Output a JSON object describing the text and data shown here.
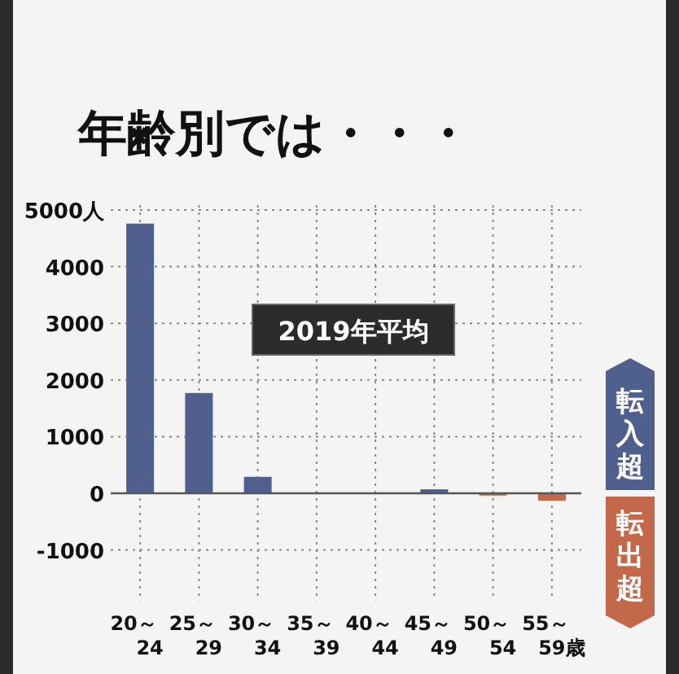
{
  "chart_data": {
    "type": "bar",
    "title": "年齢別では・・・",
    "categories": [
      "20～24",
      "25～29",
      "30～34",
      "35～39",
      "40～44",
      "45～49",
      "50～54",
      "55～59歳"
    ],
    "values": [
      4760,
      1770,
      290,
      0,
      0,
      70,
      -40,
      -130
    ],
    "colors": [
      "#4f5f8e",
      "#4f5f8e",
      "#4f5f8e",
      "#4f5f8e",
      "#4f5f8e",
      "#4f5f8e",
      "#c4684a",
      "#c4684a"
    ],
    "ylim": [
      -1900,
      5000
    ],
    "yticks": [
      {
        "value": 5000,
        "label": "5000人"
      },
      4000,
      3000,
      2000,
      1000,
      0,
      -1000
    ],
    "grid": true,
    "annotations": [
      "2019年平均",
      "転入超",
      "転出超"
    ]
  }
}
